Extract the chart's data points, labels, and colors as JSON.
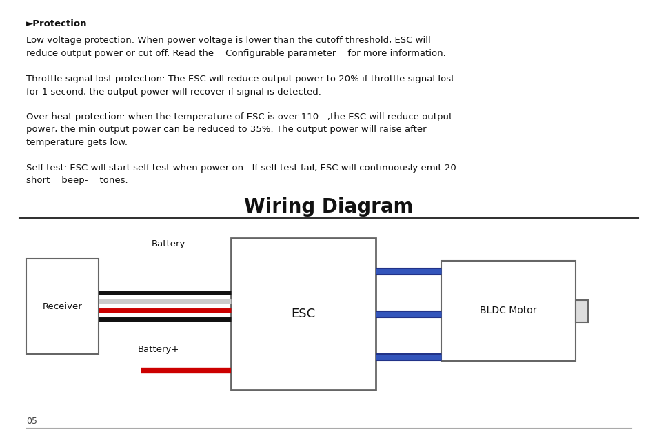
{
  "background_color": "#ffffff",
  "title": "Wiring Diagram",
  "title_fontsize": 20,
  "page_number": "05",
  "header_bullet": "►Protection",
  "para1": "Low voltage protection: When power voltage is lower than the cutoff threshold, ESC will\nreduce output power or cut off. Read the    Configurable parameter    for more information.",
  "para2": "Throttle signal lost protection: The ESC will reduce output power to 20% if throttle signal lost\nfor 1 second, the output power will recover if signal is detected.",
  "para3": "Over heat protection: when the temperature of ESC is over 110   ,the ESC will reduce output\npower, the min output power can be reduced to 35%. The output power will raise after\ntemperature gets low.",
  "para4": "Self-test: ESC will start self-test when power on.. If self-test fail, ESC will continuously emit 20\nshort    beep-    tones.",
  "receiver_label": "Receiver",
  "esc_label": "ESC",
  "bldc_label": "BLDC Motor",
  "battery_minus_label": "Battery-",
  "battery_plus_label": "Battery+",
  "wire_black": "#111111",
  "wire_red": "#cc0000",
  "wire_gray": "#bbbbbb",
  "wire_blue": "#3355bb",
  "wire_blue_dark": "#223388",
  "box_edge": "#666666",
  "text_color": "#111111"
}
